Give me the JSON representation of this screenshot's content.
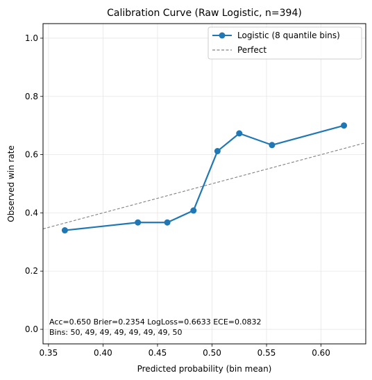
{
  "chart_data": {
    "type": "line",
    "title": "Calibration Curve (Raw Logistic, n=394)",
    "xlabel": "Predicted probability (bin mean)",
    "ylabel": "Observed win rate",
    "xlim": [
      0.345,
      0.641
    ],
    "ylim": [
      -0.05,
      1.05
    ],
    "xticks": [
      0.35,
      0.4,
      0.45,
      0.5,
      0.55,
      0.6
    ],
    "xtick_labels": [
      "0.35",
      "0.40",
      "0.45",
      "0.50",
      "0.55",
      "0.60"
    ],
    "yticks": [
      0.0,
      0.2,
      0.4,
      0.6,
      0.8,
      1.0
    ],
    "ytick_labels": [
      "0.0",
      "0.2",
      "0.4",
      "0.6",
      "0.8",
      "1.0"
    ],
    "grid": true,
    "legend_position": "top-right",
    "series": [
      {
        "name": "Logistic (8 quantile bins)",
        "color": "#1f77b4",
        "style": "line-markers",
        "x": [
          0.365,
          0.432,
          0.459,
          0.483,
          0.505,
          0.525,
          0.555,
          0.621
        ],
        "y": [
          0.34,
          0.367,
          0.367,
          0.408,
          0.612,
          0.673,
          0.633,
          0.7
        ]
      },
      {
        "name": "Perfect",
        "color": "#808080",
        "style": "dashed",
        "x": [
          0.345,
          0.641
        ],
        "y": [
          0.345,
          0.641
        ]
      }
    ],
    "annotations": [
      "Acc=0.650  Brier=0.2354  LogLoss=0.6633  ECE=0.0832",
      "Bins: 50, 49, 49, 49, 49, 49, 49, 50"
    ]
  }
}
